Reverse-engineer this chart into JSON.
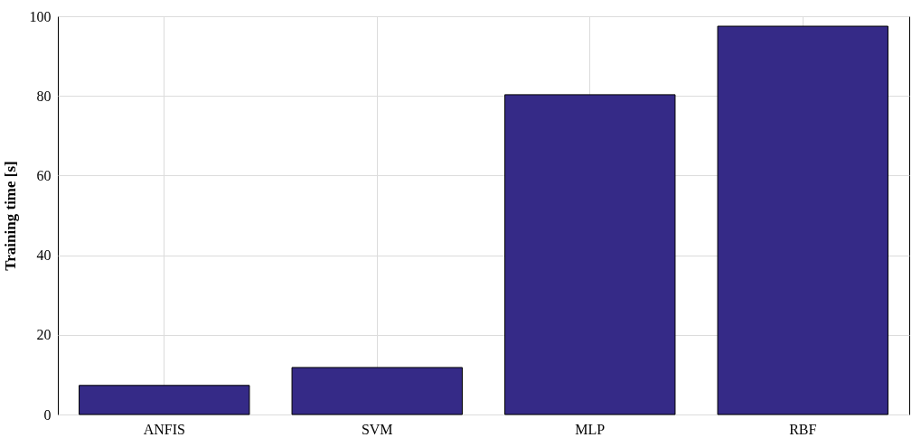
{
  "chart_data": {
    "type": "bar",
    "ylabel": "Training time [s]",
    "categories": [
      "ANFIS",
      "SVM",
      "MLP",
      "RBF"
    ],
    "values": [
      7.3,
      11.8,
      80.3,
      97.5
    ],
    "color": "#352a87",
    "ylim": [
      0,
      100
    ],
    "yticks": [
      0,
      20,
      40,
      60,
      80,
      100
    ],
    "grid": true
  }
}
